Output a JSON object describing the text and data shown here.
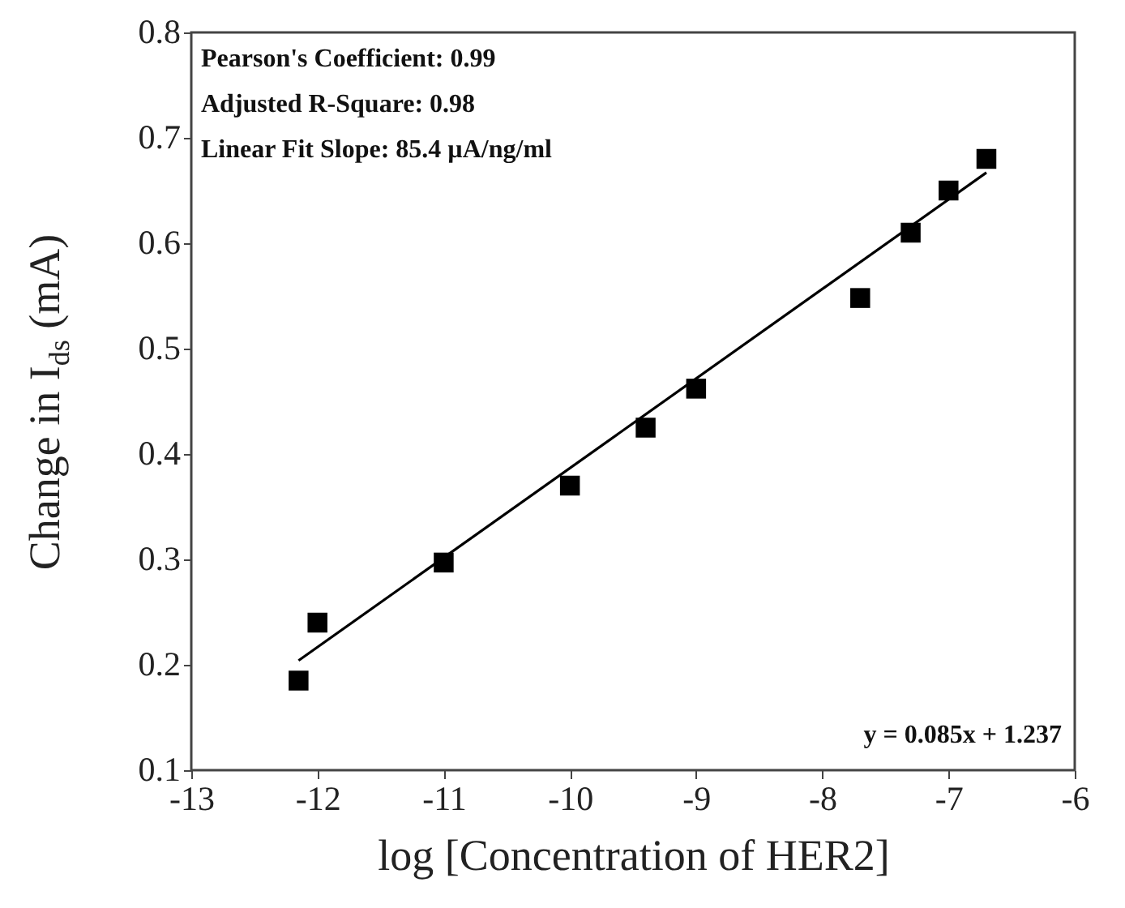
{
  "chart_data": {
    "type": "scatter",
    "xlabel": "log [Concentration of HER2]",
    "ylabel": "Change in I$_{ds}$ (mA)",
    "xlim": [
      -13,
      -6
    ],
    "xticks": [
      -13,
      -12,
      -11,
      -10,
      -9,
      -8,
      -7,
      -6
    ],
    "ylim": [
      0.1,
      0.8
    ],
    "yticks": [
      0.1,
      0.2,
      0.3,
      0.4,
      0.5,
      0.6,
      0.7,
      0.8
    ],
    "series": [
      {
        "type": "scatter",
        "marker": "square",
        "color": "#000000",
        "x": [
          -12.15,
          -12,
          -11,
          -10,
          -9.4,
          -9,
          -7.7,
          -7.3,
          -7,
          -6.7
        ],
        "values": [
          0.185,
          0.24,
          0.297,
          0.37,
          0.425,
          0.462,
          0.548,
          0.61,
          0.65,
          0.68
        ]
      },
      {
        "type": "line",
        "color": "#000000",
        "x": [
          -12.15,
          -6.7
        ],
        "values": [
          0.204,
          0.667
        ]
      }
    ],
    "annotations": [
      "Pearson's Coefficient: 0.99",
      "Adjusted R-Square: 0.98",
      "Linear Fit Slope: 85.4 µA/ng/ml",
      "y = 0.085x + 1.237"
    ]
  }
}
